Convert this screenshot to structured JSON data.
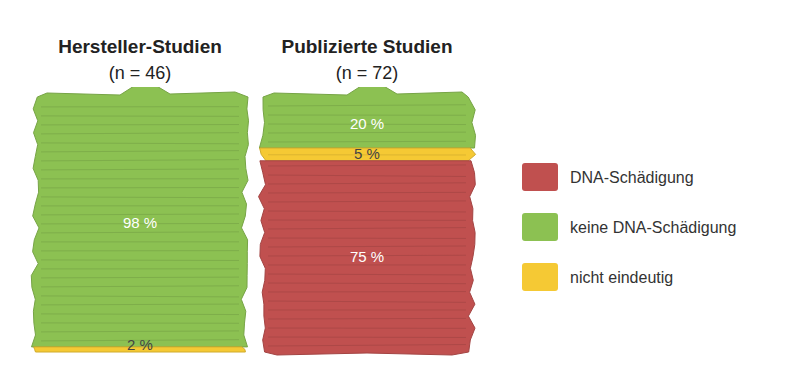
{
  "chart_data": {
    "type": "bar",
    "stacked": true,
    "categories": [
      "Hersteller-Studien",
      "Publizierte Studien"
    ],
    "category_subtitles": [
      "(n = 46)",
      "(n = 72)"
    ],
    "series": [
      {
        "name": "DNA-Schädigung",
        "color": "#c0504f",
        "values": [
          0,
          75
        ],
        "value_labels": [
          null,
          "75 %"
        ]
      },
      {
        "name": "keine DNA-Schädigung",
        "color": "#8cc152",
        "values": [
          98,
          20
        ],
        "value_labels": [
          "98 %",
          "20 %"
        ]
      },
      {
        "name": "nicht eindeutig",
        "color": "#f5c934",
        "values": [
          2,
          5
        ],
        "value_labels": [
          "2 %",
          "5 %"
        ]
      }
    ],
    "ylim": [
      0,
      100
    ],
    "yticks": [
      0,
      100
    ],
    "tick_labels": false,
    "grid": false,
    "data_labels": true,
    "legend": "right"
  }
}
